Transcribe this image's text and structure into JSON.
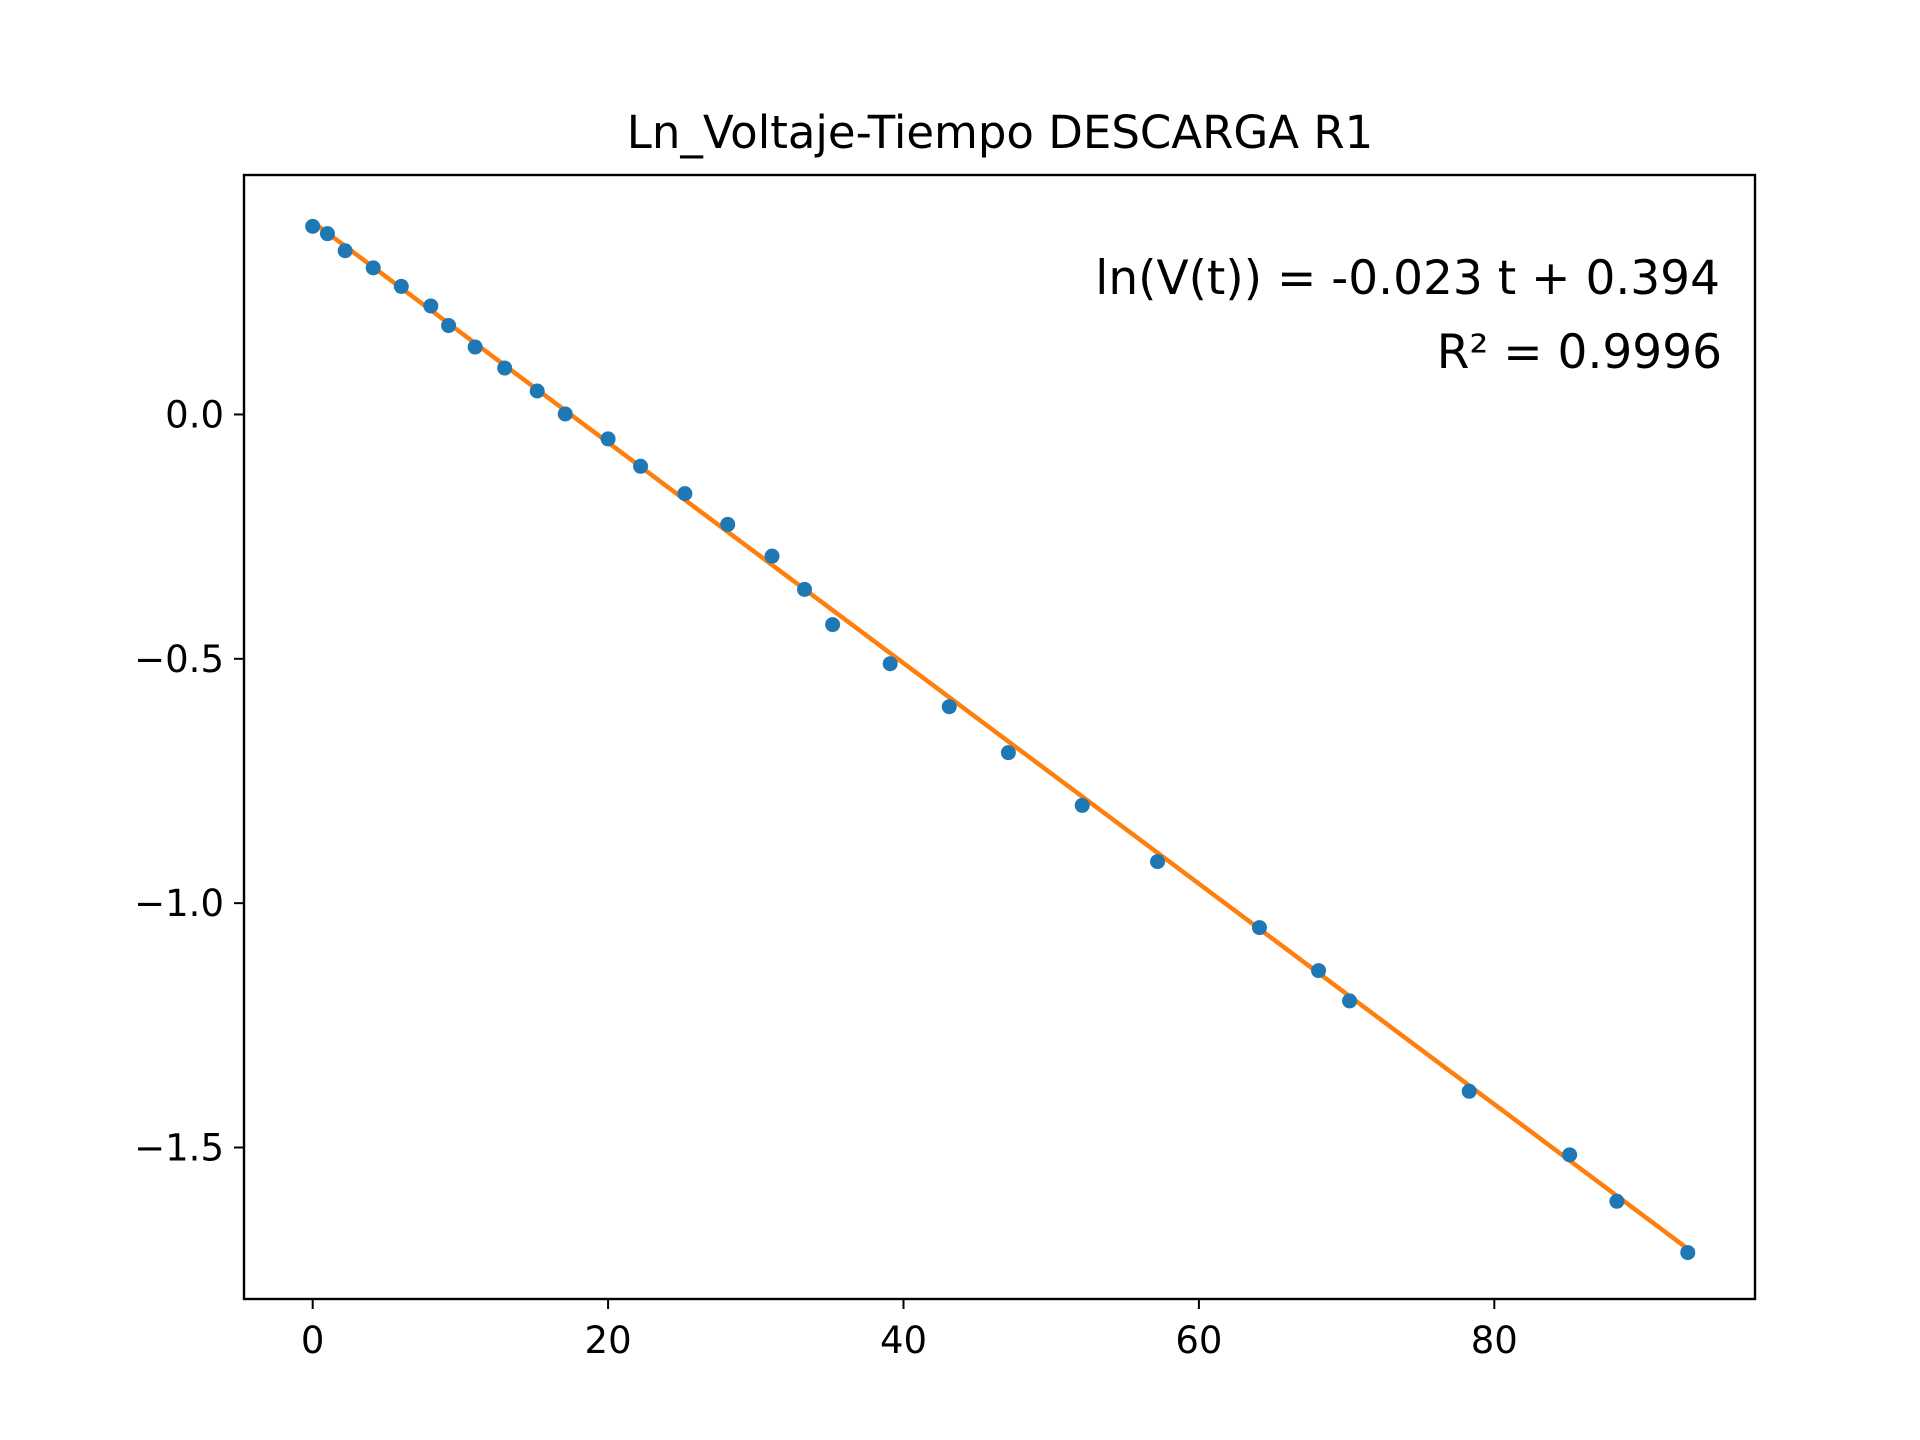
{
  "chart_data": {
    "type": "scatter",
    "title": "Ln_Voltaje-Tiempo DESCARGA R1",
    "xlabel": "",
    "ylabel": "",
    "xlim": [
      -4.65,
      97.65
    ],
    "ylim": [
      -1.81,
      0.49
    ],
    "x_ticks": [
      0,
      20,
      40,
      60,
      80
    ],
    "y_ticks": [
      0.0,
      -0.5,
      -1.0,
      -1.5
    ],
    "x_tick_labels": [
      "0",
      "20",
      "40",
      "60",
      "80"
    ],
    "y_tick_labels": [
      "0.0",
      "−0.5",
      "−1.0",
      "−1.5"
    ],
    "grid": false,
    "series": [
      {
        "kind": "points",
        "color": "#1f77b4",
        "x": [
          0,
          1,
          2.2,
          4.1,
          6,
          8,
          9.2,
          11,
          13,
          15.2,
          17.1,
          20,
          22.2,
          25.2,
          28.1,
          31.1,
          33.3,
          35.2,
          39.1,
          43.1,
          47.1,
          52.1,
          57.2,
          64.1,
          68.1,
          70.2,
          78.3,
          85.1,
          88.3,
          93.1
        ],
        "y": [
          0.385,
          0.37,
          0.335,
          0.3,
          0.262,
          0.222,
          0.182,
          0.138,
          0.095,
          0.048,
          0.001,
          -0.05,
          -0.106,
          -0.162,
          -0.225,
          -0.29,
          -0.358,
          -0.43,
          -0.51,
          -0.598,
          -0.692,
          -0.8,
          -0.915,
          -1.05,
          -1.138,
          -1.2,
          -1.385,
          -1.515,
          -1.61,
          -1.715
        ]
      },
      {
        "kind": "fit",
        "color": "#ff7f0e",
        "x": [
          0,
          93.1
        ],
        "y": [
          0.394,
          -1.7073
        ]
      }
    ],
    "annotations": [
      "ln(V(t)) = -0.023 t + 0.394",
      "R² = 0.9996"
    ]
  }
}
